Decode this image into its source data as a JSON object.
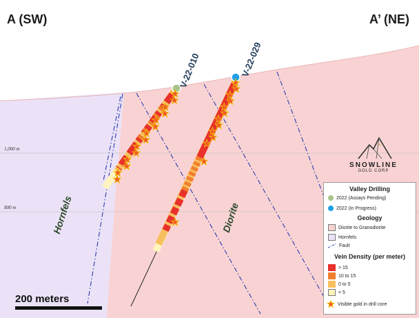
{
  "section": {
    "left_end": "A (SW)",
    "right_end": "A’ (NE)",
    "elevations": [
      "1,000 m",
      "800 m"
    ],
    "units": [
      "Hornfels",
      "Diorite"
    ],
    "holes": [
      "V-22-010",
      "V-22-029"
    ],
    "scale_bar": "200 meters"
  },
  "logo": {
    "name": "SNOWLINE",
    "sub": "GOLD CORP"
  },
  "legend": {
    "drilling_title": "Valley Drilling",
    "drilling_items": [
      {
        "label": "2022 (Assays Pending)",
        "color": "#a9c48a"
      },
      {
        "label": "2022 (In Progress)",
        "color": "#1ea0e6"
      }
    ],
    "geology_title": "Geology",
    "geology_items": [
      {
        "label": "Diorite to Granodiorite",
        "color": "#f9d3d3"
      },
      {
        "label": "Hornfels",
        "color": "#ebe2f7"
      },
      {
        "label": "Fault",
        "color": "#2a3bb0"
      }
    ],
    "vein_title": "Vein Density (per meter)",
    "vein_items": [
      {
        "label": "> 15",
        "color": "#e8312a"
      },
      {
        "label": "10 to 15",
        "color": "#f17f2f"
      },
      {
        "label": "0 to 5",
        "color": "#f8bf5f"
      },
      {
        "label": "< 5",
        "color": "#fff4bd"
      }
    ],
    "gold_label": "Visible gold in drill core",
    "gold_color": "#f15a24"
  }
}
